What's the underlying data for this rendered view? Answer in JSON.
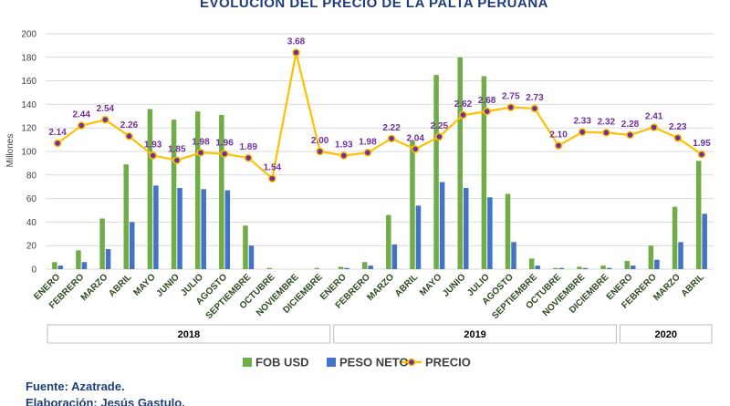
{
  "chart_data": {
    "type": "bar+line",
    "title": "EVOLUCIÓN DEL PRECIO DE LA PALTA PERUANA",
    "ylabel": "Millones",
    "ylim": [
      0,
      200
    ],
    "yticks": [
      0,
      20,
      40,
      60,
      80,
      100,
      120,
      140,
      160,
      180,
      200
    ],
    "categories": [
      "ENERO",
      "FEBRERO",
      "MARZO",
      "ABRIL",
      "MAYO",
      "JUNIO",
      "JULIO",
      "AGOSTO",
      "SEPTIEMBRE",
      "OCTUBRE",
      "NOVIEMBRE",
      "DICIEMBRE",
      "ENERO",
      "FEBRERO",
      "MARZO",
      "ABRIL",
      "MAYO",
      "JUNIO",
      "JULIO",
      "AGOSTO",
      "SEPTIEMBRE",
      "OCTUBRE",
      "NOVIEMBRE",
      "DICIEMBRE",
      "ENERO",
      "FEBRERO",
      "MARZO",
      "ABRIL"
    ],
    "years": [
      {
        "label": "2018",
        "start": 0,
        "end": 11
      },
      {
        "label": "2019",
        "start": 12,
        "end": 23
      },
      {
        "label": "2020",
        "start": 24,
        "end": 27
      }
    ],
    "series": [
      {
        "name": "FOB USD",
        "type": "bar",
        "color": "#70ad47",
        "values": [
          6,
          16,
          43,
          89,
          136,
          127,
          134,
          131,
          37,
          1,
          0,
          1,
          2,
          6,
          46,
          109,
          165,
          180,
          164,
          64,
          9,
          1,
          2,
          3,
          7,
          20,
          53,
          92
        ]
      },
      {
        "name": "PESO NETO",
        "type": "bar",
        "color": "#4472c4",
        "values": [
          3,
          6,
          17,
          40,
          71,
          69,
          68,
          67,
          20,
          0,
          0,
          0,
          1,
          3,
          21,
          54,
          74,
          69,
          61,
          23,
          3,
          1,
          1,
          1,
          3,
          8,
          23,
          47
        ]
      },
      {
        "name": "PRECIO",
        "type": "line",
        "color": "#ffc000",
        "marker_color": "#7030a0",
        "values": [
          2.14,
          2.44,
          2.54,
          2.26,
          1.93,
          1.85,
          1.98,
          1.96,
          1.89,
          1.54,
          3.68,
          2.0,
          1.93,
          1.98,
          2.22,
          2.04,
          2.25,
          2.62,
          2.68,
          2.75,
          2.73,
          2.1,
          2.33,
          2.32,
          2.28,
          2.41,
          2.23,
          1.95
        ],
        "labels": [
          "2.14",
          "2.44",
          "2.54",
          "2.26",
          "1.93",
          "1.85",
          "1.98",
          "1.96",
          "1.89",
          "1.54",
          "3.68",
          "2.00",
          "1.93",
          "1.98",
          "2.22",
          "2.04",
          "2.25",
          "2.62",
          "2.68",
          "2.75",
          "2.73",
          "2.10",
          "2.33",
          "2.32",
          "2.28",
          "2.41",
          "2.23",
          "1.95"
        ]
      }
    ],
    "legend": [
      "FOB USD",
      "PESO NETO",
      "PRECIO"
    ],
    "legend_position": "bottom",
    "grid": true
  },
  "footer": {
    "source": "Fuente: Azatrade.",
    "author": "Elaboración: Jesús Gastulo."
  }
}
